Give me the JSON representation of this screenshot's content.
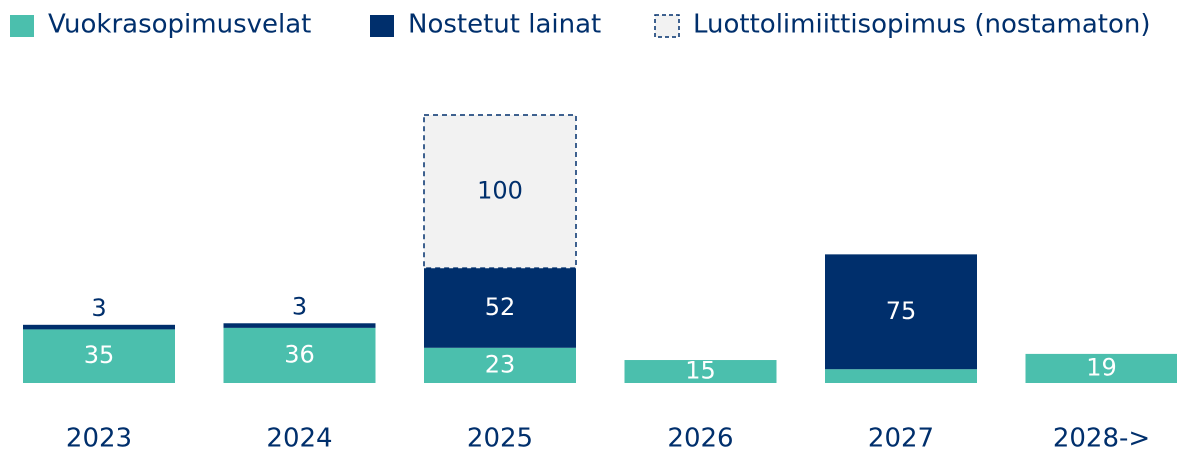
{
  "chart_data": {
    "type": "stacked-bar",
    "categories": [
      "2023",
      "2024",
      "2025",
      "2026",
      "2027",
      "2028->"
    ],
    "series": [
      {
        "name": "Vuokrasopimusvelat",
        "color": "#4bbfad",
        "values": [
          35,
          36,
          23,
          15,
          9,
          19
        ]
      },
      {
        "name": "Nostetut lainat",
        "color": "#002f6c",
        "values": [
          3,
          3,
          52,
          null,
          75,
          null
        ]
      },
      {
        "name": "Luottolimiittisopimus (nostamaton)",
        "color": "#f2f2f2",
        "border": "dashed",
        "values": [
          null,
          null,
          100,
          null,
          null,
          null
        ]
      }
    ]
  }
}
